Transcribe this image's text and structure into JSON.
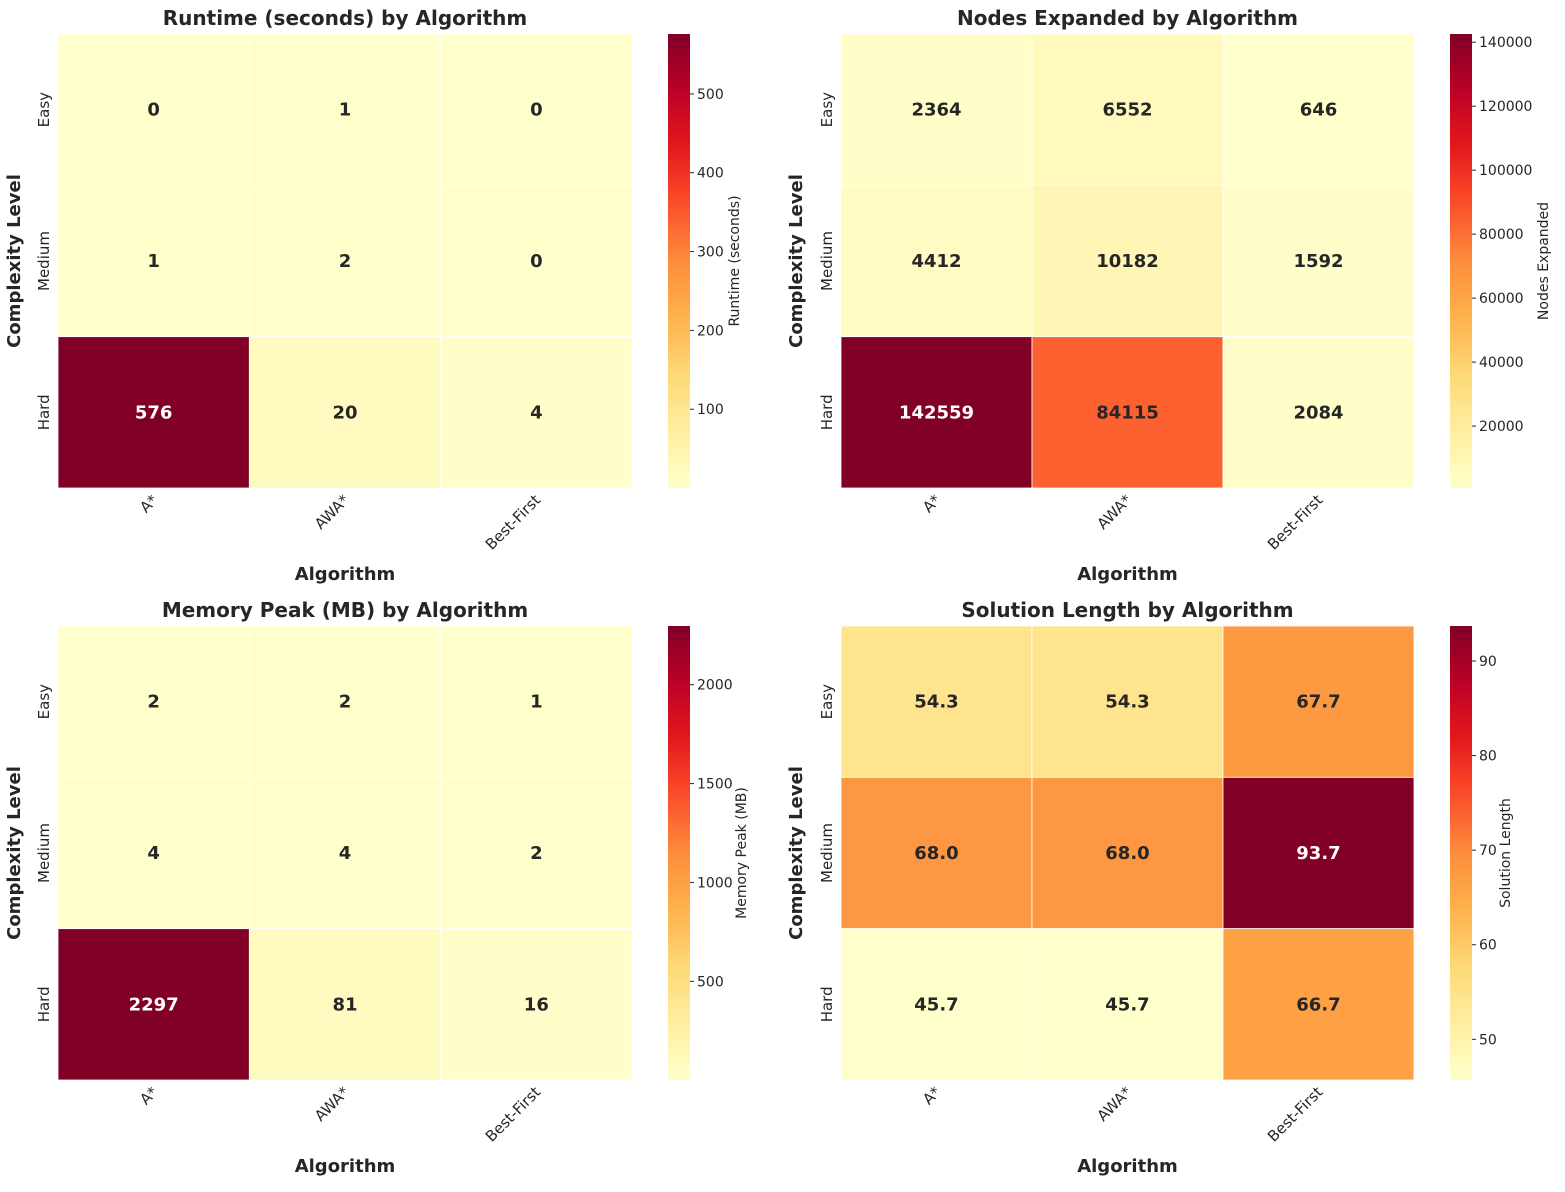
{
  "chart_data": [
    {
      "type": "heatmap",
      "title": "Runtime (seconds) by Algorithm",
      "xlabel": "Algorithm",
      "ylabel": "Complexity Level",
      "x_categories": [
        "A*",
        "AWA*",
        "Best-First"
      ],
      "y_categories": [
        "Easy",
        "Medium",
        "Hard"
      ],
      "values": [
        [
          0.3,
          0.9,
          0.1
        ],
        [
          1.1,
          2.0,
          0.3
        ],
        [
          576,
          20,
          4
        ]
      ],
      "labels": [
        [
          "0",
          "1",
          "0"
        ],
        [
          "1",
          "2",
          "0"
        ],
        [
          "576",
          "20",
          "4"
        ]
      ],
      "colorbar": {
        "label": "Runtime (seconds)",
        "range": [
          0.1,
          576
        ],
        "ticks": [
          100,
          200,
          300,
          400,
          500
        ],
        "tick_labels": [
          "100",
          "200",
          "300",
          "400",
          "500"
        ]
      },
      "colormap": "YlOrRd"
    },
    {
      "type": "heatmap",
      "title": "Nodes Expanded by Algorithm",
      "xlabel": "Algorithm",
      "ylabel": "Complexity Level",
      "x_categories": [
        "A*",
        "AWA*",
        "Best-First"
      ],
      "y_categories": [
        "Easy",
        "Medium",
        "Hard"
      ],
      "values": [
        [
          2364,
          6552,
          646
        ],
        [
          4412,
          10182,
          1592
        ],
        [
          142559,
          84115,
          2084
        ]
      ],
      "labels": [
        [
          "2364",
          "6552",
          "646"
        ],
        [
          "4412",
          "10182",
          "1592"
        ],
        [
          "142559",
          "84115",
          "2084"
        ]
      ],
      "colorbar": {
        "label": "Nodes Expanded",
        "range": [
          646,
          142559
        ],
        "ticks": [
          20000,
          40000,
          60000,
          80000,
          100000,
          120000,
          140000
        ],
        "tick_labels": [
          "20000",
          "40000",
          "60000",
          "80000",
          "100000",
          "120000",
          "140000"
        ]
      },
      "colormap": "YlOrRd"
    },
    {
      "type": "heatmap",
      "title": "Memory Peak (MB) by Algorithm",
      "xlabel": "Algorithm",
      "ylabel": "Complexity Level",
      "x_categories": [
        "A*",
        "AWA*",
        "Best-First"
      ],
      "y_categories": [
        "Easy",
        "Medium",
        "Hard"
      ],
      "values": [
        [
          2,
          2,
          1
        ],
        [
          4,
          4,
          2
        ],
        [
          2297,
          81,
          16
        ]
      ],
      "labels": [
        [
          "2",
          "2",
          "1"
        ],
        [
          "4",
          "4",
          "2"
        ],
        [
          "2297",
          "81",
          "16"
        ]
      ],
      "colorbar": {
        "label": "Memory Peak (MB)",
        "range": [
          1,
          2297
        ],
        "ticks": [
          500,
          1000,
          1500,
          2000
        ],
        "tick_labels": [
          "500",
          "1000",
          "1500",
          "2000"
        ]
      },
      "colormap": "YlOrRd"
    },
    {
      "type": "heatmap",
      "title": "Solution Length by Algorithm",
      "xlabel": "Algorithm",
      "ylabel": "Complexity Level",
      "x_categories": [
        "A*",
        "AWA*",
        "Best-First"
      ],
      "y_categories": [
        "Easy",
        "Medium",
        "Hard"
      ],
      "values": [
        [
          54.3,
          54.3,
          67.7
        ],
        [
          68.0,
          68.0,
          93.7
        ],
        [
          45.7,
          45.7,
          66.7
        ]
      ],
      "labels": [
        [
          "54.3",
          "54.3",
          "67.7"
        ],
        [
          "68.0",
          "68.0",
          "93.7"
        ],
        [
          "45.7",
          "45.7",
          "66.7"
        ]
      ],
      "colorbar": {
        "label": "Solution Length",
        "range": [
          45.7,
          93.7
        ],
        "ticks": [
          50,
          60,
          70,
          80,
          90
        ],
        "tick_labels": [
          "50",
          "60",
          "70",
          "80",
          "90"
        ]
      },
      "colormap": "YlOrRd"
    }
  ]
}
